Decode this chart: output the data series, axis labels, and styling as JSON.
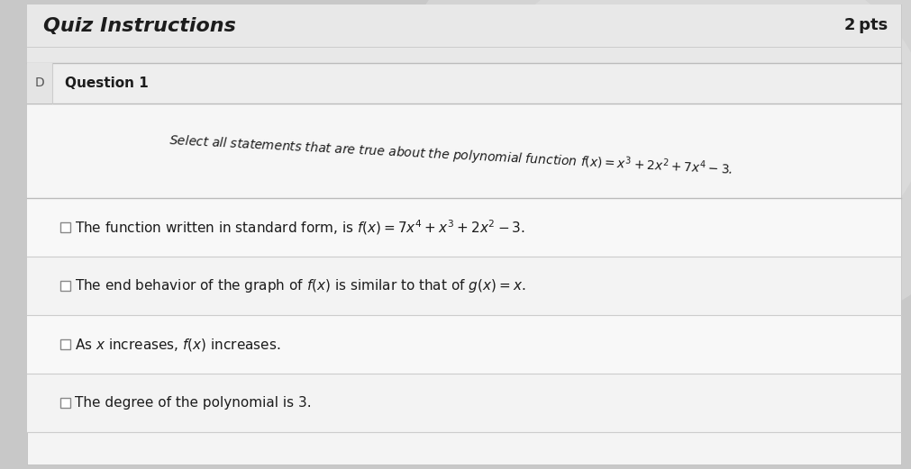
{
  "title": "Quiz Instructions",
  "points": "2 pts",
  "question_label": "Question 1",
  "question_prefix": "D",
  "question_text": "Select all statements that are true about the polynomial function $f(x) = x^3 + 2x^2 + 7x^4 - 3$.",
  "options": [
    "The function written in standard form, is $f(x) = 7x^4 + x^3 + 2x^2 - 3$.",
    "The end behavior of the graph of $f(x)$ is similar to that of $g(x) = x$.",
    "As $x$ increases, $f(x)$ increases.",
    "The degree of the polynomial is 3."
  ],
  "bg_top": "#d6d6d6",
  "bg_bottom": "#c0c0c0",
  "panel_bg": "#f5f5f5",
  "header_bg": "#e0e0e0",
  "row_bg_light": "#f8f8f8",
  "row_bg_alt": "#f0f0f0",
  "separator_color": "#cccccc",
  "text_dark": "#1c1c1c",
  "text_gray": "#555555",
  "title_fontsize": 16,
  "points_fontsize": 13,
  "question_label_fontsize": 11,
  "question_text_fontsize": 10,
  "option_fontsize": 11,
  "figsize": [
    10.11,
    5.21
  ],
  "dpi": 100
}
